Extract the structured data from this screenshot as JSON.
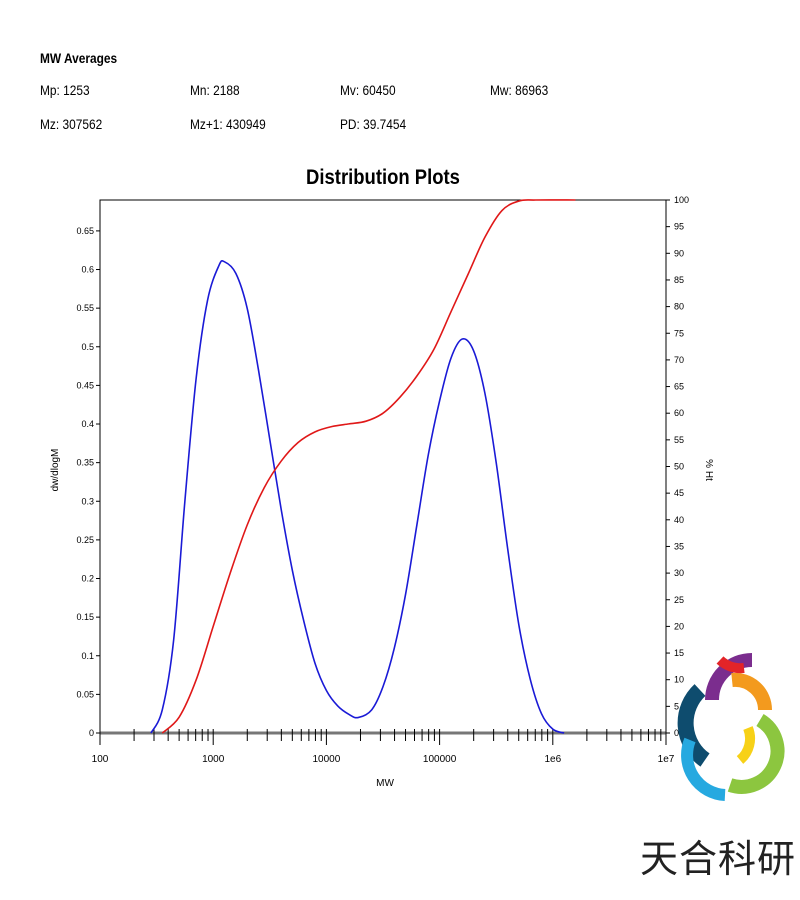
{
  "averages": {
    "heading": "MW Averages",
    "mp": "Mp: 1253",
    "mn": "Mn: 2188",
    "mv": "Mv: 60450",
    "mw": "Mw: 86963",
    "mz": "Mz: 307562",
    "mz1": "Mz+1: 430949",
    "pd": "PD: 39.7454"
  },
  "logo": {
    "text": "天合科研"
  },
  "chart_data": {
    "type": "line",
    "title": "Distribution Plots",
    "xlabel": "MW",
    "ylabel": "dw/dlogM",
    "y2label": "% Ht",
    "xscale": "log",
    "xlim": [
      100,
      10000000
    ],
    "ylim": [
      0,
      0.69
    ],
    "y2lim": [
      0,
      100
    ],
    "xticks": [
      {
        "v": 100,
        "label": "100"
      },
      {
        "v": 1000,
        "label": "1000"
      },
      {
        "v": 10000,
        "label": "10000"
      },
      {
        "v": 100000,
        "label": "100000"
      },
      {
        "v": 1000000,
        "label": "1e6"
      },
      {
        "v": 10000000,
        "label": "1e7"
      }
    ],
    "yticks": [
      "0",
      "0.05",
      "0.1",
      "0.15",
      "0.2",
      "0.25",
      "0.3",
      "0.35",
      "0.4",
      "0.45",
      "0.5",
      "0.55",
      "0.6",
      "0.65"
    ],
    "y2ticks": [
      "0",
      "5",
      "10",
      "15",
      "20",
      "25",
      "30",
      "35",
      "40",
      "45",
      "50",
      "55",
      "60",
      "65",
      "70",
      "75",
      "80",
      "85",
      "90",
      "95",
      "100"
    ],
    "grid": false,
    "series": [
      {
        "name": "dw/dlogM",
        "axis": "left",
        "color": "#1a1ad6",
        "x": [
          282,
          355,
          447,
          562,
          708,
          891,
          1122,
          1259,
          1585,
          1995,
          2512,
          3162,
          3981,
          5012,
          6310,
          7943,
          10000,
          12589,
          15849,
          19055,
          25119,
          31623,
          39811,
          50119,
          63096,
          79433,
          100000,
          125893,
          158489,
          199526,
          251189,
          316228,
          398107,
          501187,
          630957,
          794328,
          1000000,
          1258925
        ],
        "y": [
          0,
          0.03,
          0.12,
          0.3,
          0.46,
          0.56,
          0.605,
          0.61,
          0.595,
          0.55,
          0.47,
          0.38,
          0.29,
          0.21,
          0.145,
          0.09,
          0.055,
          0.035,
          0.024,
          0.02,
          0.03,
          0.06,
          0.11,
          0.18,
          0.27,
          0.36,
          0.43,
          0.485,
          0.51,
          0.495,
          0.44,
          0.35,
          0.24,
          0.14,
          0.07,
          0.025,
          0.005,
          0
        ]
      },
      {
        "name": "% Ht",
        "axis": "right",
        "color": "#e01818",
        "x": [
          355,
          501,
          708,
          1000,
          1413,
          1995,
          2818,
          3981,
          5623,
          7943,
          11220,
          15849,
          22387,
          31623,
          44668,
          63096,
          89125,
          125893,
          177828,
          251189,
          354813,
          501187,
          707946,
          1584893
        ],
        "y": [
          0,
          3,
          10,
          20,
          30,
          39,
          46,
          51,
          54.5,
          56.5,
          57.5,
          58,
          58.5,
          60,
          63,
          67,
          72,
          79,
          86,
          93,
          98,
          99.8,
          100,
          100
        ]
      }
    ]
  }
}
